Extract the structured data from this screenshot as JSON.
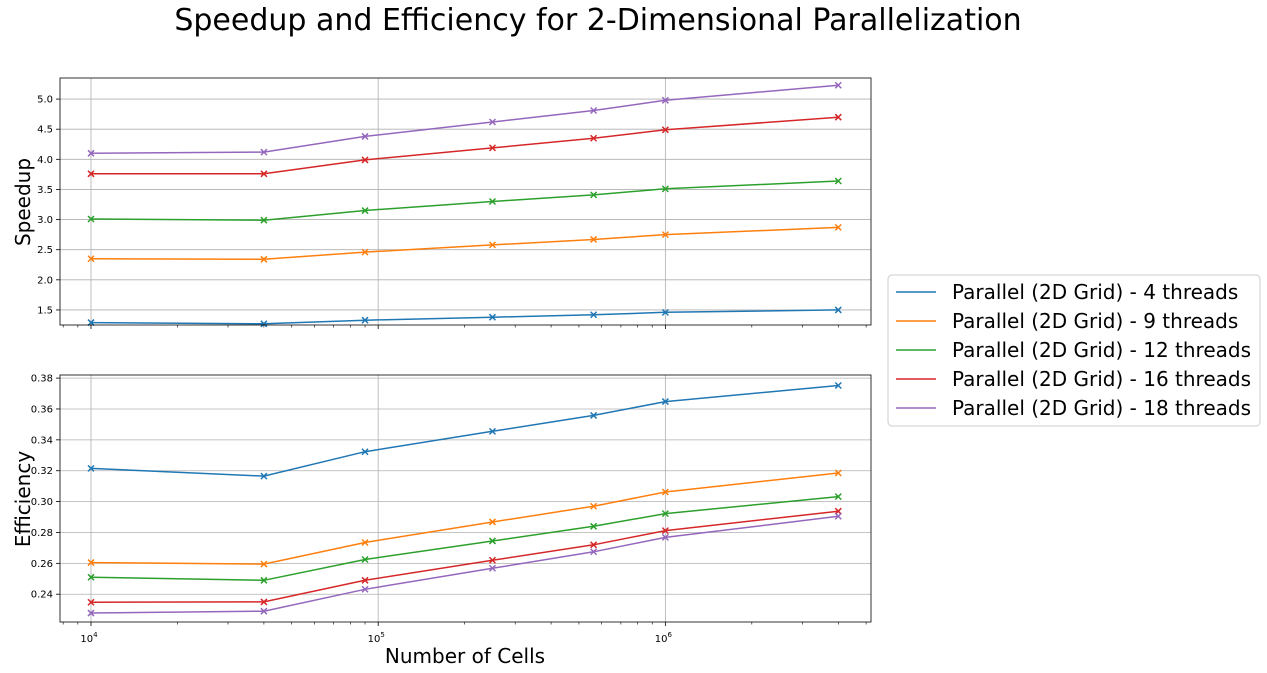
{
  "chart_data": {
    "type": "line",
    "title": "Speedup and Efficiency for 2-Dimensional Parallelization",
    "xlabel": "Number of Cells",
    "x": [
      10000,
      40000,
      90000,
      250000,
      562500,
      1000000,
      4000000
    ],
    "x_scale": "log",
    "xlim": [
      7800,
      5200000
    ],
    "x_ticks": [
      {
        "value": 10000,
        "base": "10",
        "exp": "4"
      },
      {
        "value": 100000,
        "base": "10",
        "exp": "5"
      },
      {
        "value": 1000000,
        "base": "10",
        "exp": "6"
      }
    ],
    "grid": true,
    "legend_position": "outside-right",
    "legend": [
      {
        "label": "Parallel (2D Grid) - 4 threads",
        "color": "#1f77b4"
      },
      {
        "label": "Parallel (2D Grid) - 9 threads",
        "color": "#ff7f0e"
      },
      {
        "label": "Parallel (2D Grid) - 12 threads",
        "color": "#2ca02c"
      },
      {
        "label": "Parallel (2D Grid) - 16 threads",
        "color": "#d62728"
      },
      {
        "label": "Parallel (2D Grid) - 18 threads",
        "color": "#9467bd"
      }
    ],
    "panels": [
      {
        "ylabel": "Speedup",
        "ylim": [
          1.25,
          5.35
        ],
        "yticks": [
          "1.5",
          "2.0",
          "2.5",
          "3.0",
          "3.5",
          "4.0",
          "4.5",
          "5.0"
        ],
        "series": [
          {
            "values": [
              1.29,
              1.27,
              1.33,
              1.38,
              1.42,
              1.46,
              1.5
            ]
          },
          {
            "values": [
              2.35,
              2.34,
              2.46,
              2.58,
              2.67,
              2.75,
              2.87
            ]
          },
          {
            "values": [
              3.01,
              2.99,
              3.15,
              3.3,
              3.41,
              3.51,
              3.64
            ]
          },
          {
            "values": [
              3.76,
              3.76,
              3.99,
              4.19,
              4.35,
              4.49,
              4.7
            ]
          },
          {
            "values": [
              4.1,
              4.12,
              4.38,
              4.62,
              4.81,
              4.98,
              5.23
            ]
          }
        ]
      },
      {
        "ylabel": "Efficiency",
        "ylim": [
          0.222,
          0.382
        ],
        "yticks": [
          "0.24",
          "0.26",
          "0.28",
          "0.30",
          "0.32",
          "0.34",
          "0.36",
          "0.38"
        ],
        "series": [
          {
            "values": [
              0.3215,
              0.3165,
              0.3323,
              0.3455,
              0.3558,
              0.3648,
              0.3752
            ]
          },
          {
            "values": [
              0.2605,
              0.2595,
              0.2735,
              0.2868,
              0.297,
              0.3062,
              0.3185
            ]
          },
          {
            "values": [
              0.251,
              0.249,
              0.2625,
              0.2745,
              0.284,
              0.2922,
              0.3032
            ]
          },
          {
            "values": [
              0.2348,
              0.235,
              0.249,
              0.262,
              0.272,
              0.2812,
              0.2938
            ]
          },
          {
            "values": [
              0.2278,
              0.229,
              0.2432,
              0.2568,
              0.2675,
              0.2768,
              0.2905
            ]
          }
        ]
      }
    ]
  }
}
